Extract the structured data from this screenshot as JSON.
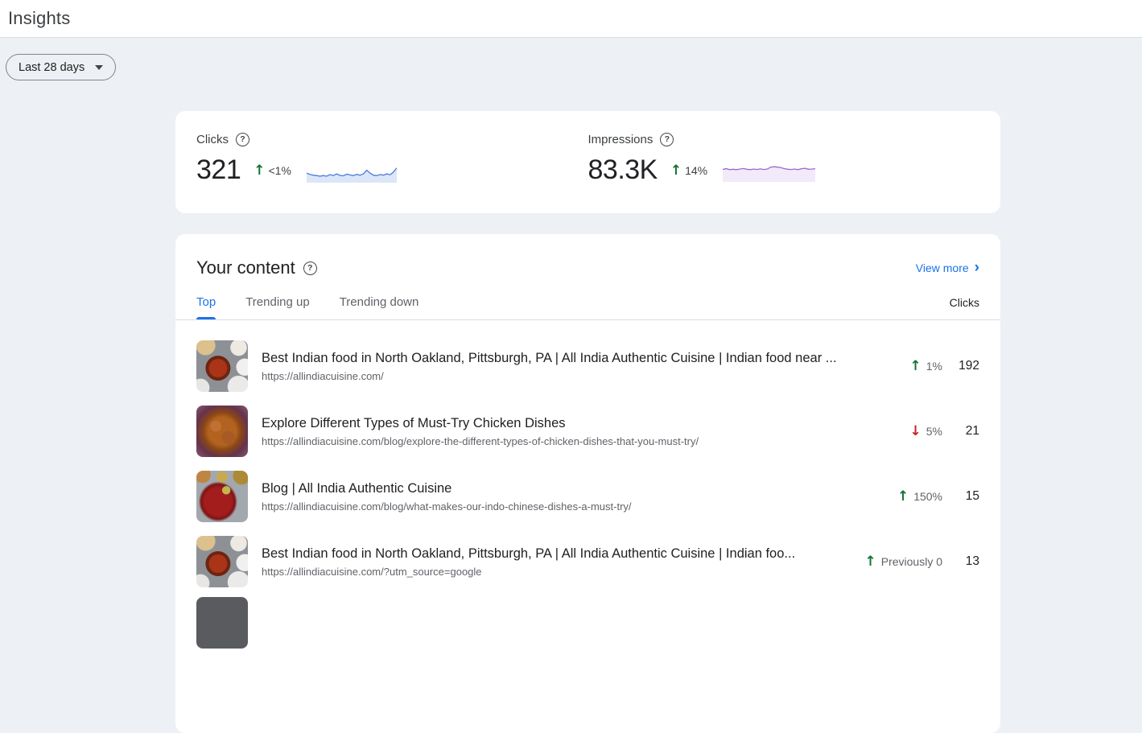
{
  "page": {
    "title": "Insights"
  },
  "toolbar": {
    "date_range": "Last 28 days"
  },
  "icons": {
    "help": "?",
    "chevron_right": "›",
    "up_arrow": "↑",
    "down_arrow": "↓"
  },
  "colors": {
    "up": "#137333",
    "down": "#c5221f",
    "accent_blue": "#1a73e8",
    "page_background": "#edf0f4",
    "card_background": "#ffffff",
    "divider": "#dadce0"
  },
  "metrics": {
    "clicks": {
      "label": "Clicks",
      "value": "321",
      "change": "<1%",
      "direction": "up",
      "spark_color": "#4b79d9",
      "spark_fill": "#dbe6f9",
      "sparkline": [
        40,
        34,
        30,
        28,
        25,
        28,
        25,
        33,
        28,
        36,
        29,
        27,
        35,
        31,
        28,
        34,
        30,
        36,
        54,
        40,
        30,
        28,
        33,
        30,
        36,
        32,
        45,
        65
      ]
    },
    "impressions": {
      "label": "Impressions",
      "value": "83.3K",
      "change": "14%",
      "direction": "up",
      "spark_color": "#9c6bc9",
      "spark_fill": "#f2e9f9",
      "sparkline": [
        58,
        62,
        57,
        59,
        57,
        60,
        63,
        59,
        57,
        60,
        58,
        61,
        58,
        60,
        70,
        72,
        70,
        67,
        62,
        59,
        58,
        60,
        57,
        62,
        64,
        59,
        60,
        62
      ]
    }
  },
  "content_section": {
    "title": "Your content",
    "view_more": "View more",
    "column_header": "Clicks",
    "tabs": [
      {
        "label": "Top",
        "active": true
      },
      {
        "label": "Trending up",
        "active": false
      },
      {
        "label": "Trending down",
        "active": false
      }
    ],
    "items": [
      {
        "title": "Best Indian food in North Oakland, Pittsburgh, PA | All India Authentic Cuisine | Indian food near ...",
        "url": "https://allindiacuisine.com/",
        "change": "1%",
        "direction": "up",
        "clicks": "192"
      },
      {
        "title": "Explore Different Types of Must-Try Chicken Dishes",
        "url": "https://allindiacuisine.com/blog/explore-the-different-types-of-chicken-dishes-that-you-must-try/",
        "change": "5%",
        "direction": "down",
        "clicks": "21"
      },
      {
        "title": "Blog | All India Authentic Cuisine",
        "url": "https://allindiacuisine.com/blog/what-makes-our-indo-chinese-dishes-a-must-try/",
        "change": "150%",
        "direction": "up",
        "clicks": "15"
      },
      {
        "title": "Best Indian food in North Oakland, Pittsburgh, PA | All India Authentic Cuisine | Indian foo...",
        "url": "https://allindiacuisine.com/?utm_source=google",
        "change": "Previously 0",
        "direction": "up",
        "clicks": "13"
      }
    ]
  }
}
